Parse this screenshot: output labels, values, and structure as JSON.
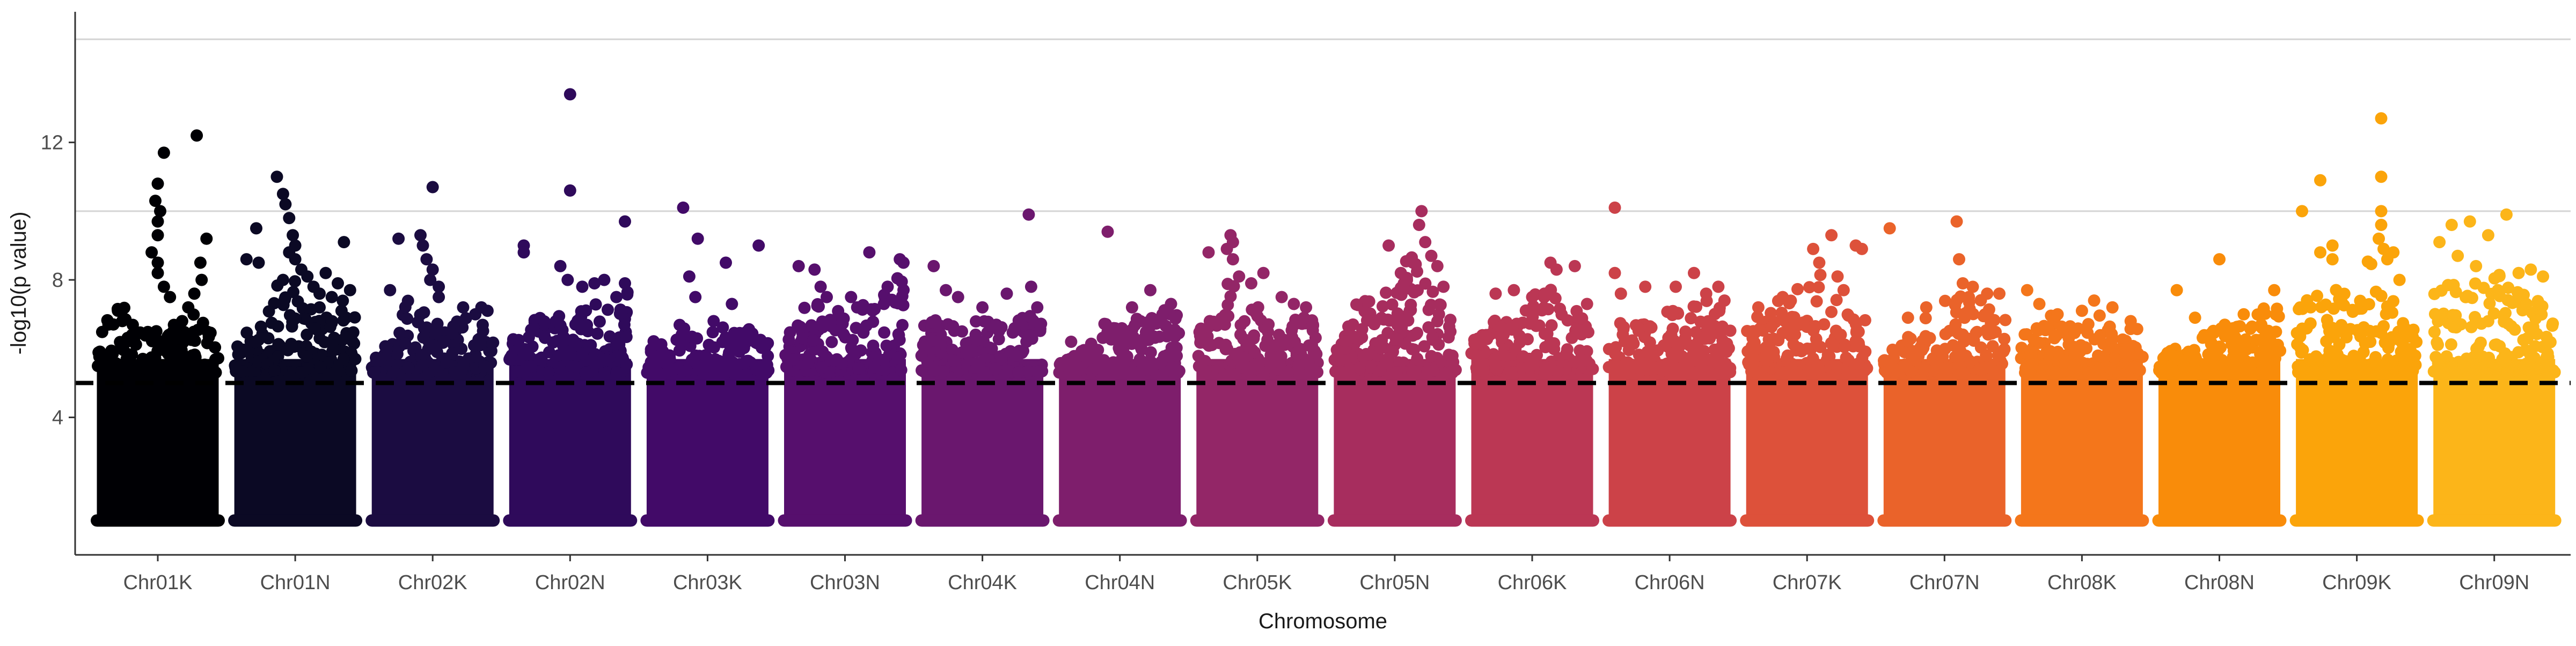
{
  "chart_data": {
    "type": "scatter",
    "subtype": "manhattan",
    "title": "",
    "xlabel": "Chromosome",
    "ylabel": "-log10(p value)",
    "ylim": [
      0,
      15.8
    ],
    "yticks": [
      4,
      8,
      12
    ],
    "y_min_plotted": 1.0,
    "horizontal_gridlines": [
      10,
      15
    ],
    "significance_threshold": 5,
    "threshold_style": "dashed",
    "legend": "none",
    "categories": [
      "Chr01K",
      "Chr01N",
      "Chr02K",
      "Chr02N",
      "Chr03K",
      "Chr03N",
      "Chr04K",
      "Chr04N",
      "Chr05K",
      "Chr05N",
      "Chr06K",
      "Chr06N",
      "Chr07K",
      "Chr07N",
      "Chr08K",
      "Chr08N",
      "Chr09K",
      "Chr09N"
    ],
    "colors": [
      "#000004",
      "#0b0924",
      "#1b0c41",
      "#2f0a5b",
      "#420a68",
      "#560f6d",
      "#6a176e",
      "#7e1e6c",
      "#932667",
      "#a72d5e",
      "#bb3754",
      "#cc4248",
      "#dd513a",
      "#ea632a",
      "#f4761b",
      "#f98c0a",
      "#fba40a",
      "#fcb519"
    ],
    "series": [
      {
        "name": "Chr01K",
        "peak_points": [
          [
            0.55,
            11.7
          ],
          [
            0.5,
            10.8
          ],
          [
            0.48,
            10.3
          ],
          [
            0.52,
            10.0
          ],
          [
            0.5,
            9.7
          ],
          [
            0.5,
            9.3
          ],
          [
            0.45,
            8.8
          ],
          [
            0.5,
            8.5
          ],
          [
            0.5,
            8.2
          ],
          [
            0.55,
            7.8
          ],
          [
            0.6,
            7.5
          ],
          [
            0.82,
            12.2
          ],
          [
            0.9,
            9.2
          ],
          [
            0.85,
            8.5
          ],
          [
            0.86,
            8.0
          ],
          [
            0.8,
            7.6
          ],
          [
            0.75,
            7.2
          ],
          [
            0.7,
            6.8
          ]
        ],
        "upper_envelope": [
          6.5,
          7.0,
          7.5,
          6.8,
          6.5,
          6.6,
          6.4,
          6.7,
          6.5,
          7.0,
          7.2,
          6.6
        ]
      },
      {
        "name": "Chr01N",
        "peak_points": [
          [
            0.18,
            9.5
          ],
          [
            0.2,
            8.5
          ],
          [
            0.1,
            8.6
          ],
          [
            0.35,
            11.0
          ],
          [
            0.4,
            10.5
          ],
          [
            0.42,
            10.2
          ],
          [
            0.45,
            9.8
          ],
          [
            0.48,
            9.3
          ],
          [
            0.5,
            9.0
          ],
          [
            0.45,
            8.8
          ],
          [
            0.5,
            8.6
          ],
          [
            0.55,
            8.3
          ],
          [
            0.4,
            8.0
          ],
          [
            0.6,
            8.1
          ],
          [
            0.65,
            7.8
          ],
          [
            0.7,
            7.6
          ],
          [
            0.75,
            8.2
          ],
          [
            0.8,
            7.5
          ],
          [
            0.85,
            7.9
          ],
          [
            0.9,
            9.1
          ],
          [
            0.95,
            7.7
          ],
          [
            0.88,
            7.1
          ],
          [
            0.7,
            7.2
          ]
        ],
        "upper_envelope": [
          6.3,
          6.5,
          7.0,
          7.4,
          8.0,
          8.0,
          7.6,
          7.2,
          7.0,
          7.3,
          7.4,
          7.0
        ]
      },
      {
        "name": "Chr02K",
        "peak_points": [
          [
            0.15,
            7.7
          ],
          [
            0.22,
            9.2
          ],
          [
            0.4,
            9.3
          ],
          [
            0.42,
            9.0
          ],
          [
            0.45,
            8.6
          ],
          [
            0.5,
            8.3
          ],
          [
            0.5,
            10.7
          ],
          [
            0.48,
            8.0
          ],
          [
            0.55,
            7.8
          ],
          [
            0.55,
            7.5
          ],
          [
            0.75,
            7.2
          ],
          [
            0.85,
            7.0
          ],
          [
            0.9,
            7.2
          ],
          [
            0.95,
            7.1
          ]
        ],
        "upper_envelope": [
          5.8,
          6.4,
          6.8,
          7.8,
          8.2,
          7.4,
          6.8,
          6.6,
          6.9,
          7.0,
          6.9,
          6.6
        ]
      },
      {
        "name": "Chr02N",
        "peak_points": [
          [
            0.12,
            9.0
          ],
          [
            0.12,
            8.8
          ],
          [
            0.5,
            13.4
          ],
          [
            0.5,
            10.6
          ],
          [
            0.42,
            8.4
          ],
          [
            0.48,
            8.0
          ],
          [
            0.6,
            7.8
          ],
          [
            0.7,
            7.9
          ],
          [
            0.78,
            8.0
          ],
          [
            0.88,
            7.5
          ],
          [
            0.95,
            9.7
          ],
          [
            0.95,
            7.9
          ]
        ],
        "upper_envelope": [
          6.4,
          6.6,
          6.9,
          7.0,
          7.2,
          7.4,
          7.1,
          7.2,
          7.5,
          7.6,
          7.7,
          7.8
        ]
      },
      {
        "name": "Chr03K",
        "peak_points": [
          [
            0.3,
            10.1
          ],
          [
            0.42,
            9.2
          ],
          [
            0.65,
            8.5
          ],
          [
            0.92,
            9.0
          ],
          [
            0.35,
            8.1
          ],
          [
            0.4,
            7.5
          ],
          [
            0.7,
            7.3
          ],
          [
            0.55,
            6.8
          ]
        ],
        "upper_envelope": [
          6.3,
          6.4,
          6.6,
          6.7,
          6.5,
          6.5,
          6.7,
          6.7,
          6.9,
          6.6,
          6.6,
          6.5
        ]
      },
      {
        "name": "Chr03N",
        "peak_points": [
          [
            0.12,
            8.4
          ],
          [
            0.25,
            8.3
          ],
          [
            0.3,
            7.8
          ],
          [
            0.35,
            7.5
          ],
          [
            0.55,
            7.5
          ],
          [
            0.7,
            8.8
          ],
          [
            0.82,
            7.3
          ],
          [
            0.95,
            8.6
          ],
          [
            0.98,
            8.5
          ],
          [
            0.6,
            7.2
          ],
          [
            0.85,
            7.8
          ]
        ],
        "upper_envelope": [
          6.5,
          7.0,
          7.2,
          7.4,
          7.0,
          7.2,
          7.1,
          7.5,
          7.3,
          7.6,
          8.0,
          8.3
        ]
      },
      {
        "name": "Chr04K",
        "peak_points": [
          [
            0.1,
            8.4
          ],
          [
            0.2,
            7.7
          ],
          [
            0.3,
            7.5
          ],
          [
            0.5,
            7.2
          ],
          [
            0.7,
            7.6
          ],
          [
            0.9,
            7.8
          ],
          [
            0.88,
            9.9
          ],
          [
            0.95,
            7.2
          ]
        ],
        "upper_envelope": [
          7.0,
          7.2,
          7.0,
          6.8,
          6.6,
          6.8,
          6.8,
          7.0,
          6.8,
          7.0,
          7.4,
          7.2
        ]
      },
      {
        "name": "Chr04N",
        "peak_points": [
          [
            0.1,
            6.2
          ],
          [
            0.4,
            9.4
          ],
          [
            0.75,
            7.7
          ],
          [
            0.85,
            7.0
          ],
          [
            0.6,
            7.2
          ],
          [
            0.92,
            7.3
          ]
        ],
        "upper_envelope": [
          5.7,
          5.8,
          6.0,
          6.5,
          6.8,
          6.7,
          6.6,
          7.0,
          6.8,
          6.9,
          7.2,
          7.0
        ]
      },
      {
        "name": "Chr05K",
        "peak_points": [
          [
            0.1,
            8.8
          ],
          [
            0.25,
            8.9
          ],
          [
            0.3,
            8.6
          ],
          [
            0.28,
            9.3
          ],
          [
            0.3,
            9.1
          ],
          [
            0.35,
            8.1
          ],
          [
            0.45,
            7.9
          ],
          [
            0.55,
            8.2
          ],
          [
            0.7,
            7.5
          ],
          [
            0.8,
            7.3
          ],
          [
            0.9,
            7.2
          ]
        ],
        "upper_envelope": [
          6.8,
          7.0,
          7.4,
          8.0,
          7.5,
          7.2,
          7.3,
          7.0,
          7.0,
          7.1,
          7.0,
          6.9
        ]
      },
      {
        "name": "Chr05N",
        "peak_points": [
          [
            0.45,
            9.0
          ],
          [
            0.55,
            8.2
          ],
          [
            0.6,
            8.0
          ],
          [
            0.65,
            8.5
          ],
          [
            0.7,
            9.6
          ],
          [
            0.72,
            10.0
          ],
          [
            0.75,
            9.1
          ],
          [
            0.8,
            8.7
          ],
          [
            0.85,
            8.4
          ],
          [
            0.9,
            7.8
          ]
        ],
        "upper_envelope": [
          6.7,
          7.0,
          7.3,
          7.5,
          7.6,
          7.8,
          8.0,
          8.7,
          8.6,
          8.2,
          7.6,
          7.0
        ]
      },
      {
        "name": "Chr06K",
        "peak_points": [
          [
            0.2,
            7.6
          ],
          [
            0.35,
            7.7
          ],
          [
            0.5,
            7.5
          ],
          [
            0.6,
            7.6
          ],
          [
            0.65,
            8.5
          ],
          [
            0.7,
            8.3
          ],
          [
            0.85,
            8.4
          ],
          [
            0.95,
            7.3
          ]
        ],
        "upper_envelope": [
          6.4,
          6.5,
          6.9,
          6.8,
          7.0,
          7.3,
          7.6,
          8.0,
          7.6,
          7.3,
          7.1,
          6.9
        ]
      },
      {
        "name": "Chr06N",
        "peak_points": [
          [
            0.05,
            10.1
          ],
          [
            0.05,
            8.2
          ],
          [
            0.1,
            7.6
          ],
          [
            0.3,
            7.8
          ],
          [
            0.55,
            7.8
          ],
          [
            0.7,
            8.2
          ],
          [
            0.8,
            7.6
          ],
          [
            0.9,
            7.8
          ],
          [
            0.95,
            7.4
          ]
        ],
        "upper_envelope": [
          6.6,
          6.8,
          6.7,
          6.9,
          7.0,
          7.2,
          7.1,
          7.0,
          7.3,
          7.4,
          7.2,
          7.0
        ]
      },
      {
        "name": "Chr07K",
        "peak_points": [
          [
            0.1,
            7.2
          ],
          [
            0.3,
            7.5
          ],
          [
            0.55,
            8.9
          ],
          [
            0.6,
            8.5
          ],
          [
            0.7,
            9.3
          ],
          [
            0.75,
            8.1
          ],
          [
            0.8,
            7.7
          ],
          [
            0.9,
            9.0
          ],
          [
            0.95,
            8.9
          ]
        ],
        "upper_envelope": [
          6.8,
          7.0,
          7.2,
          7.4,
          7.6,
          7.8,
          7.9,
          8.2,
          7.6,
          7.3,
          7.1,
          7.0
        ]
      },
      {
        "name": "Chr07N",
        "peak_points": [
          [
            0.2,
            6.9
          ],
          [
            0.35,
            7.2
          ],
          [
            0.6,
            9.7
          ],
          [
            0.62,
            8.6
          ],
          [
            0.65,
            7.9
          ],
          [
            0.7,
            7.5
          ],
          [
            0.85,
            7.6
          ],
          [
            0.95,
            7.6
          ],
          [
            0.05,
            9.5
          ]
        ],
        "upper_envelope": [
          6.0,
          6.2,
          6.4,
          6.6,
          7.0,
          7.2,
          7.4,
          7.7,
          7.8,
          7.6,
          7.3,
          7.0
        ]
      },
      {
        "name": "Chr08K",
        "peak_points": [
          [
            0.05,
            7.7
          ],
          [
            0.15,
            7.3
          ],
          [
            0.3,
            7.0
          ],
          [
            0.5,
            7.1
          ],
          [
            0.6,
            7.4
          ],
          [
            0.75,
            7.2
          ],
          [
            0.9,
            6.8
          ]
        ],
        "upper_envelope": [
          6.6,
          6.8,
          7.0,
          7.0,
          6.7,
          6.9,
          6.9,
          7.1,
          7.0,
          6.8,
          6.7,
          6.6
        ]
      },
      {
        "name": "Chr08N",
        "peak_points": [
          [
            0.15,
            7.7
          ],
          [
            0.3,
            6.9
          ],
          [
            0.5,
            8.6
          ],
          [
            0.7,
            7.0
          ],
          [
            0.85,
            6.6
          ],
          [
            0.95,
            7.7
          ]
        ],
        "upper_envelope": [
          5.9,
          6.0,
          6.2,
          6.3,
          6.5,
          6.6,
          6.7,
          6.8,
          6.9,
          7.1,
          7.2,
          7.3
        ]
      },
      {
        "name": "Chr09K",
        "peak_points": [
          [
            0.05,
            10.0
          ],
          [
            0.2,
            10.9
          ],
          [
            0.2,
            8.8
          ],
          [
            0.3,
            9.0
          ],
          [
            0.3,
            8.6
          ],
          [
            0.7,
            12.7
          ],
          [
            0.7,
            11.0
          ],
          [
            0.7,
            10.0
          ],
          [
            0.7,
            9.6
          ],
          [
            0.68,
            9.2
          ],
          [
            0.72,
            8.9
          ],
          [
            0.75,
            8.6
          ],
          [
            0.8,
            8.8
          ],
          [
            0.85,
            8.0
          ]
        ],
        "upper_envelope": [
          7.2,
          7.8,
          8.4,
          8.2,
          7.6,
          7.3,
          7.4,
          8.8,
          8.6,
          7.6,
          7.2,
          7.0
        ]
      },
      {
        "name": "Chr09N",
        "peak_points": [
          [
            0.05,
            9.1
          ],
          [
            0.15,
            9.6
          ],
          [
            0.3,
            9.7
          ],
          [
            0.45,
            9.3
          ],
          [
            0.6,
            9.9
          ],
          [
            0.7,
            8.2
          ],
          [
            0.8,
            8.3
          ],
          [
            0.9,
            8.1
          ],
          [
            0.2,
            8.7
          ],
          [
            0.35,
            8.4
          ]
        ],
        "upper_envelope": [
          7.8,
          8.2,
          8.0,
          8.2,
          7.9,
          8.0,
          8.2,
          7.8,
          7.7,
          7.8,
          7.6,
          7.3
        ]
      }
    ]
  }
}
